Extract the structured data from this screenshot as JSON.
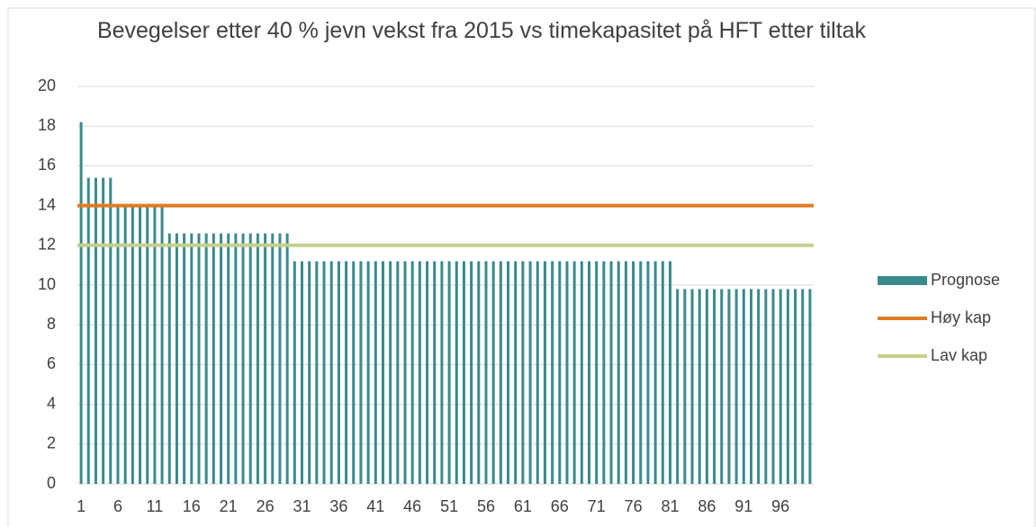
{
  "chart_data": {
    "type": "bar",
    "title": "Bevegelser etter 40 % jevn vekst fra 2015 vs timekapasitet på HFT etter tiltak",
    "categories": [
      "1",
      null,
      null,
      null,
      null,
      "6",
      null,
      null,
      null,
      null,
      "11",
      null,
      null,
      null,
      null,
      "16",
      null,
      null,
      null,
      null,
      "21",
      null,
      null,
      null,
      null,
      "26",
      null,
      null,
      null,
      null,
      "31",
      null,
      null,
      null,
      null,
      "36",
      null,
      null,
      null,
      null,
      "41",
      null,
      null,
      null,
      null,
      "46",
      null,
      null,
      null,
      null,
      "51",
      null,
      null,
      null,
      null,
      "56",
      null,
      null,
      null,
      null,
      "61",
      null,
      null,
      null,
      null,
      "66",
      null,
      null,
      null,
      null,
      "71",
      null,
      null,
      null,
      null,
      "76",
      null,
      null,
      null,
      null,
      "81",
      null,
      null,
      null,
      null,
      "86",
      null,
      null,
      null,
      null,
      "91",
      null,
      null,
      null,
      null,
      "96",
      null,
      null,
      null,
      null
    ],
    "series": [
      {
        "name": "Prognose",
        "type": "bar",
        "color": "#3a8a8c",
        "values": [
          18.2,
          15.4,
          15.4,
          15.4,
          15.4,
          14,
          14,
          14,
          14,
          14,
          14,
          14,
          12.6,
          12.6,
          12.6,
          12.6,
          12.6,
          12.6,
          12.6,
          12.6,
          12.6,
          12.6,
          12.6,
          12.6,
          12.6,
          12.6,
          12.6,
          12.6,
          12.6,
          11.2,
          11.2,
          11.2,
          11.2,
          11.2,
          11.2,
          11.2,
          11.2,
          11.2,
          11.2,
          11.2,
          11.2,
          11.2,
          11.2,
          11.2,
          11.2,
          11.2,
          11.2,
          11.2,
          11.2,
          11.2,
          11.2,
          11.2,
          11.2,
          11.2,
          11.2,
          11.2,
          11.2,
          11.2,
          11.2,
          11.2,
          11.2,
          11.2,
          11.2,
          11.2,
          11.2,
          11.2,
          11.2,
          11.2,
          11.2,
          11.2,
          11.2,
          11.2,
          11.2,
          11.2,
          11.2,
          11.2,
          11.2,
          11.2,
          11.2,
          11.2,
          11.2,
          9.8,
          9.8,
          9.8,
          9.8,
          9.8,
          9.8,
          9.8,
          9.8,
          9.8,
          9.8,
          9.8,
          9.8,
          9.8,
          9.8,
          9.8,
          9.8,
          9.8,
          9.8,
          9.8
        ]
      },
      {
        "name": "Høy kap",
        "type": "line",
        "color": "#e07b24",
        "values": [
          14,
          14,
          14,
          14,
          14,
          14,
          14,
          14,
          14,
          14,
          14,
          14,
          14,
          14,
          14,
          14,
          14,
          14,
          14,
          14,
          14,
          14,
          14,
          14,
          14,
          14,
          14,
          14,
          14,
          14,
          14,
          14,
          14,
          14,
          14,
          14,
          14,
          14,
          14,
          14,
          14,
          14,
          14,
          14,
          14,
          14,
          14,
          14,
          14,
          14,
          14,
          14,
          14,
          14,
          14,
          14,
          14,
          14,
          14,
          14,
          14,
          14,
          14,
          14,
          14,
          14,
          14,
          14,
          14,
          14,
          14,
          14,
          14,
          14,
          14,
          14,
          14,
          14,
          14,
          14,
          14,
          14,
          14,
          14,
          14,
          14,
          14,
          14,
          14,
          14,
          14,
          14,
          14,
          14,
          14,
          14,
          14,
          14,
          14,
          14
        ]
      },
      {
        "name": "Lav kap",
        "type": "line",
        "color": "#c4d08c",
        "values": [
          12,
          12,
          12,
          12,
          12,
          12,
          12,
          12,
          12,
          12,
          12,
          12,
          12,
          12,
          12,
          12,
          12,
          12,
          12,
          12,
          12,
          12,
          12,
          12,
          12,
          12,
          12,
          12,
          12,
          12,
          12,
          12,
          12,
          12,
          12,
          12,
          12,
          12,
          12,
          12,
          12,
          12,
          12,
          12,
          12,
          12,
          12,
          12,
          12,
          12,
          12,
          12,
          12,
          12,
          12,
          12,
          12,
          12,
          12,
          12,
          12,
          12,
          12,
          12,
          12,
          12,
          12,
          12,
          12,
          12,
          12,
          12,
          12,
          12,
          12,
          12,
          12,
          12,
          12,
          12,
          12,
          12,
          12,
          12,
          12,
          12,
          12,
          12,
          12,
          12,
          12,
          12,
          12,
          12,
          12,
          12,
          12,
          12,
          12,
          12
        ]
      }
    ],
    "ylim": [
      0,
      20
    ],
    "yticks": [
      0,
      2,
      4,
      6,
      8,
      10,
      12,
      14,
      16,
      18,
      20
    ],
    "grid": true,
    "legend": "right"
  }
}
